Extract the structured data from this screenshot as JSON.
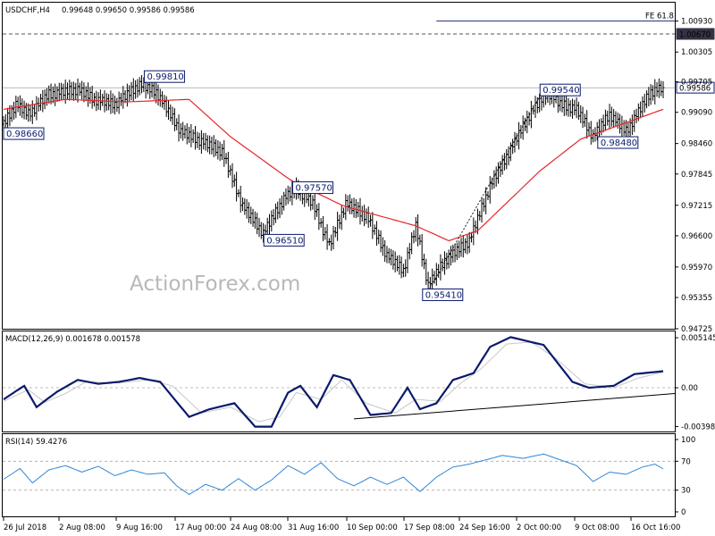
{
  "header": {
    "symbol": "USDCHF,H4",
    "ohlc": "0.99648 0.99650 0.99586 0.99586"
  },
  "watermark": "ActionForex.com",
  "colors": {
    "bars": "#000000",
    "ma": "#e8262a",
    "macd": "#0b1a6b",
    "signal": "#c8c8c8",
    "rsi": "#2f86d6",
    "trend": "#000000",
    "grid": "#a8a8a8",
    "current": "#0b1a6b"
  },
  "chart_data": [
    {
      "type": "candlestick",
      "title": "USDCHF,H4",
      "ylim": [
        0.94725,
        1.013
      ],
      "yticks": [
        "1.00930",
        "1.00305",
        "0.99705",
        "0.99090",
        "0.98460",
        "0.97845",
        "0.97215",
        "0.96600",
        "0.95970",
        "0.95355",
        "0.94725"
      ],
      "ytick_values": [
        1.0093,
        1.00305,
        0.99705,
        0.9909,
        0.9846,
        0.97845,
        0.97215,
        0.966,
        0.9597,
        0.95355,
        0.94725
      ],
      "xticks": [
        "26 Jul 2018",
        "2 Aug 08:00",
        "9 Aug 16:00",
        "17 Aug 00:00",
        "24 Aug 08:00",
        "31 Aug 16:00",
        "10 Sep 00:00",
        "17 Sep 08:00",
        "24 Sep 16:00",
        "2 Oct 00:00",
        "9 Oct 08:00",
        "16 Oct 16:00"
      ],
      "close_anchors": [
        [
          0,
          0.9885
        ],
        [
          6,
          0.9925
        ],
        [
          12,
          0.9905
        ],
        [
          22,
          0.9945
        ],
        [
          36,
          0.9955
        ],
        [
          44,
          0.9935
        ],
        [
          54,
          0.9925
        ],
        [
          66,
          0.9965
        ],
        [
          74,
          0.995
        ],
        [
          86,
          0.987
        ],
        [
          96,
          0.985
        ],
        [
          106,
          0.983
        ],
        [
          116,
          0.972
        ],
        [
          126,
          0.9665
        ],
        [
          136,
          0.9735
        ],
        [
          142,
          0.9755
        ],
        [
          150,
          0.9725
        ],
        [
          158,
          0.964
        ],
        [
          166,
          0.9725
        ],
        [
          176,
          0.97
        ],
        [
          186,
          0.962
        ],
        [
          194,
          0.959
        ],
        [
          200,
          0.968
        ],
        [
          206,
          0.956
        ],
        [
          214,
          0.961
        ],
        [
          226,
          0.965
        ],
        [
          236,
          0.976
        ],
        [
          246,
          0.9835
        ],
        [
          256,
          0.991
        ],
        [
          264,
          0.995
        ],
        [
          270,
          0.9925
        ],
        [
          278,
          0.9915
        ],
        [
          286,
          0.986
        ],
        [
          294,
          0.9905
        ],
        [
          302,
          0.987
        ],
        [
          314,
          0.995
        ],
        [
          320,
          0.99586
        ]
      ],
      "moving_average": [
        [
          0,
          0.9915
        ],
        [
          30,
          0.9935
        ],
        [
          60,
          0.993
        ],
        [
          90,
          0.9935
        ],
        [
          110,
          0.986
        ],
        [
          140,
          0.977
        ],
        [
          165,
          0.972
        ],
        [
          200,
          0.968
        ],
        [
          216,
          0.965
        ],
        [
          230,
          0.967
        ],
        [
          260,
          0.979
        ],
        [
          280,
          0.9855
        ],
        [
          300,
          0.9885
        ],
        [
          320,
          0.9915
        ]
      ],
      "current_price": "0.99586",
      "current_value": 0.99586,
      "horizontal_level": "1.00670",
      "horizontal_value": 1.0067,
      "fib_label": "FE 61.8",
      "fib_value": 1.0093,
      "fib_from": 210,
      "annotations": [
        {
          "label": "0.98660",
          "value": 0.9866,
          "at": 0
        },
        {
          "label": "0.99810",
          "value": 0.9981,
          "at": 70
        },
        {
          "label": "0.96510",
          "value": 0.9651,
          "at": 128
        },
        {
          "label": "0.97570",
          "value": 0.9757,
          "at": 142
        },
        {
          "label": "0.95410",
          "value": 0.9541,
          "at": 205
        },
        {
          "label": "0.99540",
          "value": 0.9954,
          "at": 262
        },
        {
          "label": "0.98480",
          "value": 0.9848,
          "at": 290
        }
      ],
      "trendline": [
        [
          205,
          0.9541
        ],
        [
          262,
          0.9954
        ]
      ]
    },
    {
      "type": "line",
      "title": "MACD(12,26,9) 0.001678 0.001578",
      "ylim": [
        -0.0045,
        0.0057
      ],
      "yticks": [
        "0.005145",
        "0.00",
        "-0.003989"
      ],
      "ytick_values": [
        0.005145,
        0.0,
        -0.003989
      ],
      "macd": [
        [
          0,
          -0.0012
        ],
        [
          10,
          0.0002
        ],
        [
          16,
          -0.002
        ],
        [
          26,
          -0.0004
        ],
        [
          36,
          0.0008
        ],
        [
          46,
          0.0004
        ],
        [
          56,
          0.0006
        ],
        [
          66,
          0.001
        ],
        [
          76,
          0.0006
        ],
        [
          90,
          -0.003
        ],
        [
          100,
          -0.0022
        ],
        [
          112,
          -0.0016
        ],
        [
          122,
          -0.004
        ],
        [
          130,
          -0.004
        ],
        [
          138,
          -0.0005
        ],
        [
          144,
          0.0002
        ],
        [
          152,
          -0.002
        ],
        [
          160,
          0.0013
        ],
        [
          168,
          0.0008
        ],
        [
          178,
          -0.0028
        ],
        [
          188,
          -0.0026
        ],
        [
          196,
          0.0
        ],
        [
          202,
          -0.0022
        ],
        [
          210,
          -0.0016
        ],
        [
          218,
          0.0008
        ],
        [
          228,
          0.0015
        ],
        [
          236,
          0.0042
        ],
        [
          246,
          0.0052
        ],
        [
          254,
          0.0048
        ],
        [
          262,
          0.0044
        ],
        [
          276,
          0.0006
        ],
        [
          284,
          0.0
        ],
        [
          296,
          0.0002
        ],
        [
          306,
          0.0014
        ],
        [
          320,
          0.0017
        ]
      ],
      "signal": [
        [
          0,
          -0.0014
        ],
        [
          12,
          -0.0002
        ],
        [
          20,
          -0.0015
        ],
        [
          30,
          -0.0006
        ],
        [
          40,
          0.0006
        ],
        [
          56,
          0.0005
        ],
        [
          70,
          0.0008
        ],
        [
          82,
          0.0002
        ],
        [
          96,
          -0.0026
        ],
        [
          110,
          -0.002
        ],
        [
          124,
          -0.0035
        ],
        [
          134,
          -0.003
        ],
        [
          142,
          -0.0005
        ],
        [
          154,
          -0.0012
        ],
        [
          164,
          0.0008
        ],
        [
          176,
          -0.0016
        ],
        [
          190,
          -0.0026
        ],
        [
          200,
          -0.0012
        ],
        [
          212,
          -0.0014
        ],
        [
          222,
          0.0005
        ],
        [
          232,
          0.002
        ],
        [
          244,
          0.0045
        ],
        [
          256,
          0.0047
        ],
        [
          268,
          0.003
        ],
        [
          282,
          0.0004
        ],
        [
          296,
          0.0
        ],
        [
          308,
          0.001
        ],
        [
          320,
          0.0016
        ]
      ],
      "trendline": [
        [
          170,
          -0.0032
        ],
        [
          320,
          -0.0006
        ]
      ]
    },
    {
      "type": "line",
      "title": "RSI(14) 59.4276",
      "ylim": [
        0,
        100
      ],
      "yticks": [
        "100",
        "70",
        "30",
        "0"
      ],
      "ytick_values": [
        100,
        70,
        30,
        0
      ],
      "rsi": [
        [
          0,
          45
        ],
        [
          8,
          60
        ],
        [
          14,
          40
        ],
        [
          22,
          58
        ],
        [
          30,
          64
        ],
        [
          38,
          55
        ],
        [
          46,
          63
        ],
        [
          54,
          50
        ],
        [
          62,
          58
        ],
        [
          70,
          52
        ],
        [
          78,
          54
        ],
        [
          84,
          36
        ],
        [
          90,
          24
        ],
        [
          98,
          38
        ],
        [
          106,
          30
        ],
        [
          114,
          46
        ],
        [
          122,
          30
        ],
        [
          130,
          44
        ],
        [
          138,
          64
        ],
        [
          146,
          52
        ],
        [
          154,
          68
        ],
        [
          162,
          46
        ],
        [
          170,
          36
        ],
        [
          178,
          48
        ],
        [
          186,
          38
        ],
        [
          194,
          48
        ],
        [
          202,
          28
        ],
        [
          210,
          48
        ],
        [
          218,
          62
        ],
        [
          226,
          66
        ],
        [
          234,
          72
        ],
        [
          242,
          78
        ],
        [
          252,
          74
        ],
        [
          262,
          80
        ],
        [
          270,
          72
        ],
        [
          278,
          64
        ],
        [
          286,
          42
        ],
        [
          294,
          55
        ],
        [
          302,
          52
        ],
        [
          310,
          62
        ],
        [
          316,
          66
        ],
        [
          320,
          59.4
        ]
      ]
    }
  ]
}
